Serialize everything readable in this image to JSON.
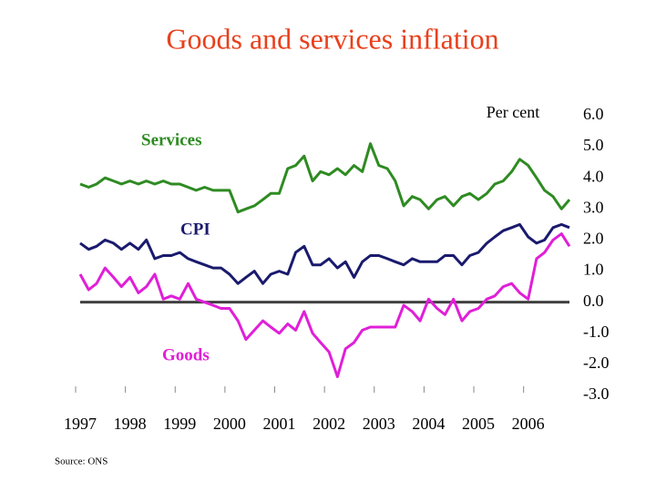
{
  "chart_data": {
    "type": "line",
    "title": "Goods and services inflation",
    "y_axis_label": "Per cent",
    "source": "Source: ONS",
    "x": [
      1997,
      1997.17,
      1997.33,
      1997.5,
      1997.67,
      1997.83,
      1998,
      1998.17,
      1998.33,
      1998.5,
      1998.67,
      1998.83,
      1999,
      1999.17,
      1999.33,
      1999.5,
      1999.67,
      1999.83,
      2000,
      2000.17,
      2000.33,
      2000.5,
      2000.67,
      2000.83,
      2001,
      2001.17,
      2001.33,
      2001.5,
      2001.67,
      2001.83,
      2002,
      2002.17,
      2002.33,
      2002.5,
      2002.67,
      2002.83,
      2003,
      2003.17,
      2003.33,
      2003.5,
      2003.67,
      2003.83,
      2004,
      2004.17,
      2004.33,
      2004.5,
      2004.67,
      2004.83,
      2005,
      2005.17,
      2005.33,
      2005.5,
      2005.67,
      2005.83,
      2006,
      2006.17,
      2006.33,
      2006.5,
      2006.67,
      2006.83
    ],
    "series": [
      {
        "name": "Services",
        "color": "#2e8b22",
        "values": [
          3.8,
          3.7,
          3.8,
          4.0,
          3.9,
          3.8,
          3.9,
          3.8,
          3.9,
          3.8,
          3.9,
          3.8,
          3.8,
          3.7,
          3.6,
          3.7,
          3.6,
          3.6,
          3.6,
          2.9,
          3.0,
          3.1,
          3.3,
          3.5,
          3.5,
          4.3,
          4.4,
          4.7,
          3.9,
          4.2,
          4.1,
          4.3,
          4.1,
          4.4,
          4.2,
          5.1,
          4.4,
          4.3,
          3.9,
          3.1,
          3.4,
          3.3,
          3.0,
          3.3,
          3.4,
          3.1,
          3.4,
          3.5,
          3.3,
          3.5,
          3.8,
          3.9,
          4.2,
          4.6,
          4.4,
          4.0,
          3.6,
          3.4,
          3.0,
          3.3
        ]
      },
      {
        "name": "CPI",
        "color": "#1a1a6e",
        "values": [
          1.9,
          1.7,
          1.8,
          2.0,
          1.9,
          1.7,
          1.9,
          1.7,
          2.0,
          1.4,
          1.5,
          1.5,
          1.6,
          1.4,
          1.3,
          1.2,
          1.1,
          1.1,
          0.9,
          0.6,
          0.8,
          1.0,
          0.6,
          0.9,
          1.0,
          0.9,
          1.6,
          1.8,
          1.2,
          1.2,
          1.4,
          1.1,
          1.3,
          0.8,
          1.3,
          1.5,
          1.5,
          1.4,
          1.3,
          1.2,
          1.4,
          1.3,
          1.3,
          1.3,
          1.5,
          1.5,
          1.2,
          1.5,
          1.6,
          1.9,
          2.1,
          2.3,
          2.4,
          2.5,
          2.1,
          1.9,
          2.0,
          2.4,
          2.5,
          2.4
        ]
      },
      {
        "name": "Goods",
        "color": "#e01fd8",
        "values": [
          0.9,
          0.4,
          0.6,
          1.1,
          0.8,
          0.5,
          0.8,
          0.3,
          0.5,
          0.9,
          0.1,
          0.2,
          0.1,
          0.6,
          0.1,
          0.0,
          -0.1,
          -0.2,
          -0.2,
          -0.6,
          -1.2,
          -0.9,
          -0.6,
          -0.8,
          -1.0,
          -0.7,
          -0.9,
          -0.3,
          -1.0,
          -1.3,
          -1.6,
          -2.4,
          -1.5,
          -1.3,
          -0.9,
          -0.8,
          -0.8,
          -0.8,
          -0.8,
          -0.1,
          -0.3,
          -0.6,
          0.1,
          -0.2,
          -0.4,
          0.1,
          -0.6,
          -0.3,
          -0.2,
          0.1,
          0.2,
          0.5,
          0.6,
          0.3,
          0.1,
          1.4,
          1.6,
          2.0,
          2.2,
          1.8
        ]
      }
    ],
    "xlim": [
      1997,
      2006.83
    ],
    "xticks": [
      1997,
      1998,
      1999,
      2000,
      2001,
      2002,
      2003,
      2004,
      2005,
      2006
    ],
    "ylim": [
      -3,
      6
    ],
    "yticks": [
      {
        "value": -3,
        "label": "-3.0"
      },
      {
        "value": -2,
        "label": "-2.0"
      },
      {
        "value": -1,
        "label": "-1.0"
      },
      {
        "value": 0,
        "label": "0.0"
      },
      {
        "value": 1,
        "label": "1.0"
      },
      {
        "value": 2,
        "label": "2.0"
      },
      {
        "value": 3,
        "label": "3.0"
      },
      {
        "value": 4,
        "label": "4.0"
      },
      {
        "value": 5,
        "label": "5.0"
      },
      {
        "value": 6,
        "label": "6.0"
      }
    ],
    "reference_line": 0,
    "reference_line_color": "#404040"
  }
}
